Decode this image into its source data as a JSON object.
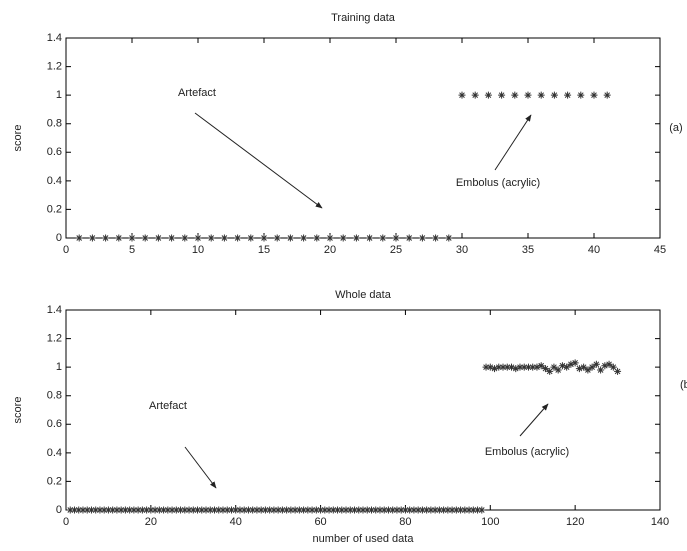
{
  "chart_data": [
    {
      "type": "scatter",
      "title": "Training data",
      "ylabel": "score",
      "color": "#333333",
      "annotations": [
        "Artefact",
        "Embolus (acrylic)",
        "(a)"
      ],
      "xlim": [
        0,
        45
      ],
      "ylim": [
        0,
        1.4
      ],
      "xticks": [
        0,
        5,
        10,
        15,
        20,
        25,
        30,
        35,
        40,
        45
      ],
      "yticks": [
        0,
        0.2,
        0.4,
        0.6,
        0.8,
        1,
        1.2,
        1.4
      ],
      "x": [
        1,
        2,
        3,
        4,
        5,
        6,
        7,
        8,
        9,
        10,
        11,
        12,
        13,
        14,
        15,
        16,
        17,
        18,
        19,
        20,
        21,
        22,
        23,
        24,
        25,
        26,
        27,
        28,
        29,
        30,
        31,
        32,
        33,
        34,
        35,
        36,
        37,
        38,
        39,
        40,
        41
      ],
      "values": [
        0,
        0,
        0,
        0,
        0,
        0,
        0,
        0,
        0,
        0,
        0,
        0,
        0,
        0,
        0,
        0,
        0,
        0,
        0,
        0,
        0,
        0,
        0,
        0,
        0,
        0,
        0,
        0,
        0,
        1,
        1,
        1,
        1,
        1,
        1,
        1,
        1,
        1,
        1,
        1,
        1
      ]
    },
    {
      "type": "scatter",
      "title": "Whole data",
      "ylabel": "score",
      "xlabel": "number of used data",
      "color": "#333333",
      "annotations": [
        "Artefact",
        "Embolus (acrylic)",
        "(b"
      ],
      "xlim": [
        0,
        140
      ],
      "ylim": [
        0,
        1.4
      ],
      "xticks": [
        0,
        20,
        40,
        60,
        80,
        100,
        120,
        140
      ],
      "yticks": [
        0,
        0.2,
        0.4,
        0.6,
        0.8,
        1,
        1.2,
        1.4
      ],
      "x": [
        1,
        2,
        3,
        4,
        5,
        6,
        7,
        8,
        9,
        10,
        11,
        12,
        13,
        14,
        15,
        16,
        17,
        18,
        19,
        20,
        21,
        22,
        23,
        24,
        25,
        26,
        27,
        28,
        29,
        30,
        31,
        32,
        33,
        34,
        35,
        36,
        37,
        38,
        39,
        40,
        41,
        42,
        43,
        44,
        45,
        46,
        47,
        48,
        49,
        50,
        51,
        52,
        53,
        54,
        55,
        56,
        57,
        58,
        59,
        60,
        61,
        62,
        63,
        64,
        65,
        66,
        67,
        68,
        69,
        70,
        71,
        72,
        73,
        74,
        75,
        76,
        77,
        78,
        79,
        80,
        81,
        82,
        83,
        84,
        85,
        86,
        87,
        88,
        89,
        90,
        91,
        92,
        93,
        94,
        95,
        96,
        97,
        98,
        99,
        100,
        101,
        102,
        103,
        104,
        105,
        106,
        107,
        108,
        109,
        110,
        111,
        112,
        113,
        114,
        115,
        116,
        117,
        118,
        119,
        120,
        121,
        122,
        123,
        124,
        125,
        126,
        127,
        128,
        129,
        130
      ],
      "values": [
        0,
        0,
        0,
        0,
        0,
        0,
        0,
        0,
        0,
        0,
        0,
        0,
        0,
        0,
        0,
        0,
        0,
        0,
        0,
        0,
        0,
        0,
        0,
        0,
        0,
        0,
        0,
        0,
        0,
        0,
        0,
        0,
        0,
        0,
        0,
        0,
        0,
        0,
        0,
        0,
        0,
        0,
        0,
        0,
        0,
        0,
        0,
        0,
        0,
        0,
        0,
        0,
        0,
        0,
        0,
        0,
        0,
        0,
        0,
        0,
        0,
        0,
        0,
        0,
        0,
        0,
        0,
        0,
        0,
        0,
        0,
        0,
        0,
        0,
        0,
        0,
        0,
        0,
        0,
        0,
        0,
        0,
        0,
        0,
        0,
        0,
        0,
        0,
        0,
        0,
        0,
        0,
        0,
        0,
        0,
        0,
        0,
        0,
        1,
        1,
        0.99,
        1,
        1,
        1,
        1,
        0.99,
        1,
        1,
        1,
        1,
        1,
        1.01,
        0.99,
        0.97,
        1,
        0.98,
        1.01,
        1,
        1.02,
        1.03,
        0.99,
        1,
        0.98,
        1,
        1.02,
        0.98,
        1.01,
        1.02,
        1,
        0.97
      ]
    }
  ]
}
